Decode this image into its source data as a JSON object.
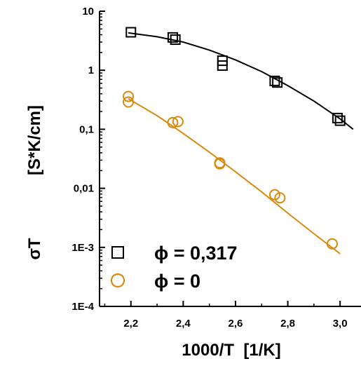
{
  "chart_data": {
    "type": "scatter",
    "xlabel": "1000/T  [1/K]",
    "ylabel_symbol": "σT",
    "ylabel_unit": "[S*K/cm]",
    "xlim": [
      2.08,
      3.08
    ],
    "ylim": [
      0.0001,
      10
    ],
    "yscale": "log",
    "x_ticks": [
      2.2,
      2.4,
      2.6,
      2.8,
      3.0
    ],
    "x_tick_labels": [
      "2,2",
      "2,4",
      "2,6",
      "2,8",
      "3,0"
    ],
    "y_ticks": [
      10,
      1,
      0.1,
      0.01,
      0.001,
      0.0001
    ],
    "y_tick_labels": [
      "10",
      "1",
      "0,1",
      "0,01",
      "1E-3",
      "1E-4"
    ],
    "grid": false,
    "legend_placement": "bottom-left",
    "series": [
      {
        "name": "ϕ = 0,317",
        "marker": "square",
        "color": "#000000",
        "x": [
          2.2,
          2.36,
          2.37,
          2.55,
          2.55,
          2.75,
          2.76,
          2.99,
          3.0
        ],
        "y": [
          4.4,
          3.6,
          3.3,
          1.45,
          1.2,
          0.66,
          0.62,
          0.155,
          0.14
        ],
        "fit_x": [
          2.19,
          2.3,
          2.4,
          2.5,
          2.6,
          2.7,
          2.8,
          2.9,
          3.0,
          3.05
        ],
        "fit_y": [
          4.3,
          3.7,
          3.0,
          2.2,
          1.5,
          0.95,
          0.55,
          0.3,
          0.15,
          0.1
        ]
      },
      {
        "name": "ϕ = 0",
        "marker": "circle",
        "color": "#D9890F",
        "x": [
          2.19,
          2.19,
          2.36,
          2.38,
          2.54,
          2.54,
          2.75,
          2.77,
          2.97
        ],
        "y": [
          0.36,
          0.29,
          0.13,
          0.135,
          0.027,
          0.026,
          0.0078,
          0.0069,
          0.00115
        ],
        "fit_x": [
          2.19,
          2.3,
          2.4,
          2.5,
          2.6,
          2.7,
          2.8,
          2.9,
          3.0
        ],
        "fit_y": [
          0.33,
          0.17,
          0.085,
          0.041,
          0.019,
          0.0087,
          0.0038,
          0.0017,
          0.00078
        ]
      }
    ]
  }
}
